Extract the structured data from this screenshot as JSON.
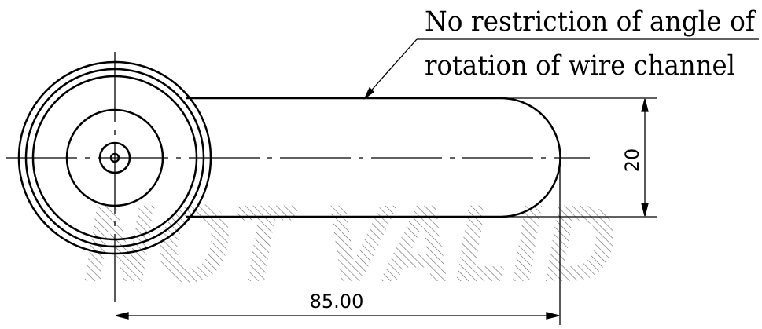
{
  "annotation": {
    "line1": "No restriction of angle of",
    "line2": "rotation of wire channel"
  },
  "dimensions": {
    "width_label": "20",
    "length_label": "85.00"
  },
  "watermark": {
    "text": "NOT VALID"
  },
  "colors": {
    "line": "#000000",
    "background": "#ffffff"
  }
}
